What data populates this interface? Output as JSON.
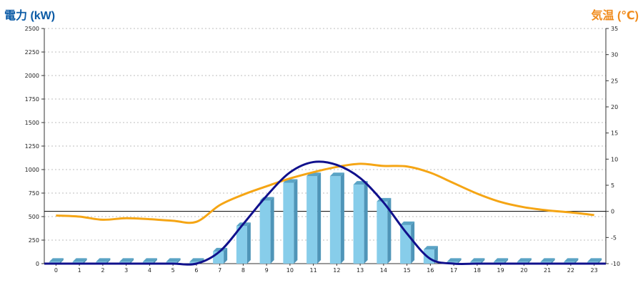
{
  "chart_data": {
    "type": "bar",
    "y_left": {
      "label": "電力 (kW)",
      "color": "#0a5aa5",
      "min": 0,
      "max": 2500,
      "ticks": [
        0,
        250,
        500,
        750,
        1000,
        1250,
        1500,
        1750,
        2000,
        2250,
        2500
      ]
    },
    "y_right": {
      "label": "気温 (℃)",
      "color": "#f08c1e",
      "min": -10,
      "max": 35,
      "ticks": [
        -10,
        -5,
        0,
        5,
        10,
        15,
        20,
        25,
        30,
        35
      ]
    },
    "categories": [
      "0",
      "1",
      "2",
      "3",
      "4",
      "5",
      "6",
      "7",
      "8",
      "9",
      "10",
      "11",
      "12",
      "13",
      "14",
      "15",
      "16",
      "17",
      "18",
      "19",
      "20",
      "21",
      "22",
      "23"
    ],
    "grid": true,
    "series": [
      {
        "kind": "bar",
        "axis": "left",
        "color": "#87cdea",
        "values": [
          20,
          20,
          20,
          20,
          20,
          20,
          20,
          130,
          400,
          670,
          860,
          930,
          930,
          840,
          660,
          410,
          150,
          20,
          20,
          20,
          20,
          20,
          20,
          20
        ]
      },
      {
        "kind": "curve",
        "axis": "left",
        "color": "#10108c",
        "values": [
          0,
          0,
          0,
          0,
          0,
          0,
          0,
          130,
          420,
          720,
          970,
          1080,
          1050,
          910,
          650,
          320,
          50,
          0,
          0,
          0,
          0,
          0,
          0,
          0
        ]
      },
      {
        "kind": "line",
        "axis": "right",
        "color": "#f5a514",
        "values": [
          -0.8,
          -1.0,
          -1.6,
          -1.3,
          -1.5,
          -1.8,
          -2.0,
          1.2,
          3.2,
          4.8,
          6.3,
          7.5,
          8.5,
          9.1,
          8.7,
          8.6,
          7.4,
          5.4,
          3.4,
          1.8,
          0.8,
          0.2,
          -0.2,
          -0.7
        ]
      }
    ]
  }
}
